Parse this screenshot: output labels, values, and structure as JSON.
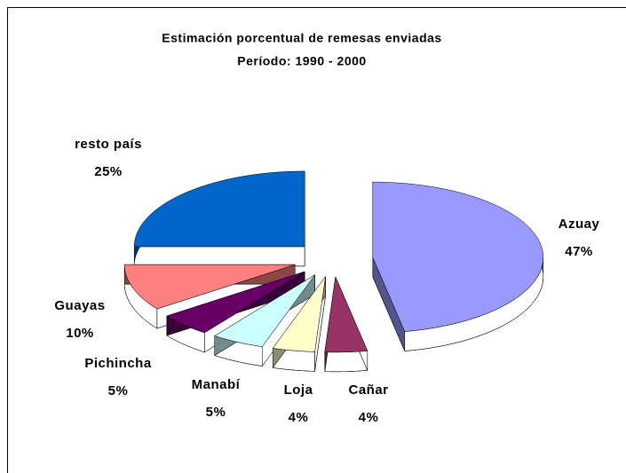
{
  "chart_data": {
    "type": "pie3d",
    "title": "Estimación porcentual de remesas enviadas",
    "subtitle": "Período: 1990 - 2000",
    "categories": [
      "Azuay",
      "Cañar",
      "Loja",
      "Manabí",
      "Pichincha",
      "Guayas",
      "resto país"
    ],
    "values": [
      47,
      4,
      4,
      5,
      5,
      10,
      25
    ],
    "value_labels": [
      "47%",
      "4%",
      "4%",
      "5%",
      "5%",
      "10%",
      "25%"
    ],
    "colors": [
      "#9999ff",
      "#993366",
      "#ffffcc",
      "#ccffff",
      "#660066",
      "#ff8080",
      "#0066cc"
    ]
  }
}
